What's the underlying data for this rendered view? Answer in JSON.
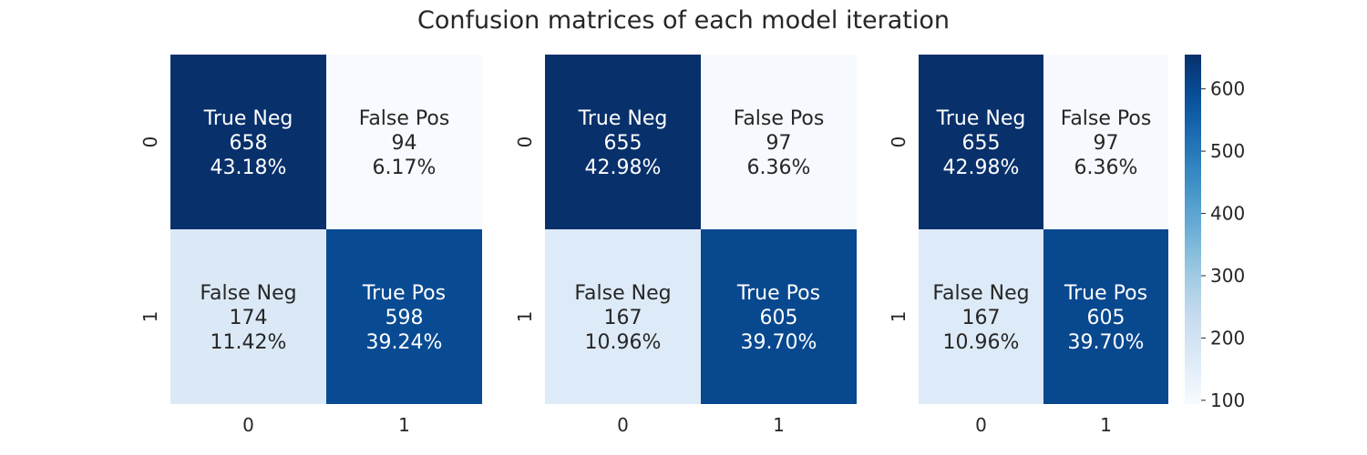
{
  "title": "Confusion matrices of each model iteration",
  "chart_data": [
    {
      "type": "heatmap",
      "x_categories": [
        "0",
        "1"
      ],
      "y_categories": [
        "0",
        "1"
      ],
      "cells": [
        [
          {
            "name": "True Neg",
            "count": 658,
            "percent": "43.18%"
          },
          {
            "name": "False Pos",
            "count": 94,
            "percent": "6.17%"
          }
        ],
        [
          {
            "name": "False Neg",
            "count": 174,
            "percent": "11.42%"
          },
          {
            "name": "True Pos",
            "count": 598,
            "percent": "39.24%"
          }
        ]
      ]
    },
    {
      "type": "heatmap",
      "x_categories": [
        "0",
        "1"
      ],
      "y_categories": [
        "0",
        "1"
      ],
      "cells": [
        [
          {
            "name": "True Neg",
            "count": 655,
            "percent": "42.98%"
          },
          {
            "name": "False Pos",
            "count": 97,
            "percent": "6.36%"
          }
        ],
        [
          {
            "name": "False Neg",
            "count": 167,
            "percent": "10.96%"
          },
          {
            "name": "True Pos",
            "count": 605,
            "percent": "39.70%"
          }
        ]
      ]
    },
    {
      "type": "heatmap",
      "x_categories": [
        "0",
        "1"
      ],
      "y_categories": [
        "0",
        "1"
      ],
      "cells": [
        [
          {
            "name": "True Neg",
            "count": 655,
            "percent": "42.98%"
          },
          {
            "name": "False Pos",
            "count": 97,
            "percent": "6.36%"
          }
        ],
        [
          {
            "name": "False Neg",
            "count": 167,
            "percent": "10.96%"
          },
          {
            "name": "True Pos",
            "count": 605,
            "percent": "39.70%"
          }
        ]
      ],
      "colorbar": {
        "ticks": [
          100,
          200,
          300,
          400,
          500,
          600
        ],
        "range": [
          94,
          655
        ],
        "colormap": "Blues"
      }
    }
  ]
}
